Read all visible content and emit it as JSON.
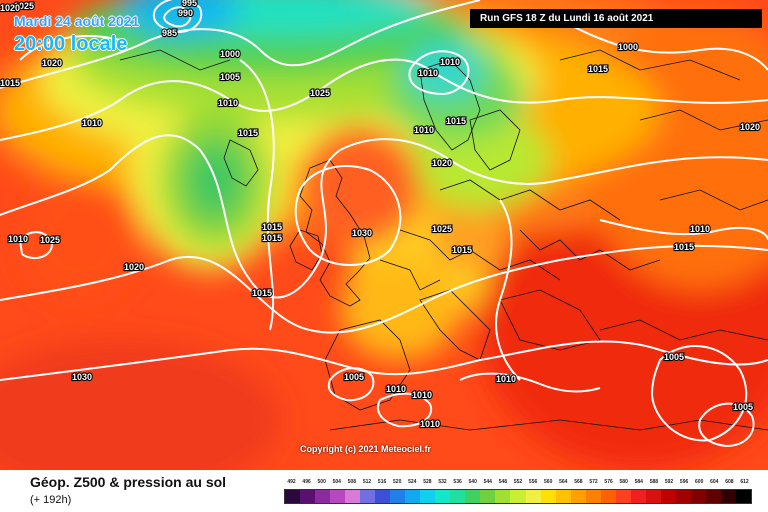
{
  "header": {
    "date": "Mardi 24 août 2021",
    "time": "20:00 locale",
    "run": "Run GFS 18 Z du Lundi 16 août 2021"
  },
  "copyright": "Copyright (c) 2021 Meteociel.fr",
  "footer": {
    "title": "Géop. Z500 & pression au sol",
    "subtitle": "(+ 192h)"
  },
  "isobar_labels": [
    "1025",
    "995",
    "990",
    "985",
    "1000",
    "1005",
    "1010",
    "1015",
    "1020",
    "1025",
    "1030",
    "1010",
    "1015",
    "1020",
    "1025",
    "1015",
    "1015",
    "1010",
    "1020",
    "1030",
    "1025",
    "1015",
    "1015",
    "1010",
    "1020",
    "1015",
    "1010",
    "1015",
    "1005",
    "1005",
    "1010",
    "1010",
    "1010",
    "1010",
    "1010",
    "1005",
    "1000",
    "1015",
    "1010",
    "1020"
  ],
  "scale": {
    "labels": [
      "492",
      "496",
      "500",
      "504",
      "508",
      "512",
      "516",
      "520",
      "524",
      "528",
      "532",
      "536",
      "540",
      "544",
      "548",
      "552",
      "556",
      "560",
      "564",
      "568",
      "572",
      "576",
      "580",
      "584",
      "588",
      "592",
      "596",
      "600",
      "604",
      "608",
      "612"
    ],
    "colors": [
      "#2a0a3a",
      "#5a1070",
      "#8c2aa0",
      "#b848c0",
      "#d87ad8",
      "#7070e0",
      "#3a50d8",
      "#2080e8",
      "#10a8f0",
      "#10d0f0",
      "#10e8c8",
      "#20e0a0",
      "#40d060",
      "#70d040",
      "#a0e030",
      "#c8f030",
      "#f0f040",
      "#ffe000",
      "#ffc000",
      "#ffa000",
      "#ff8000",
      "#ff6000",
      "#ff4020",
      "#f02020",
      "#d81010",
      "#c00000",
      "#a00000",
      "#800000",
      "#600000",
      "#300000",
      "#000000"
    ]
  }
}
